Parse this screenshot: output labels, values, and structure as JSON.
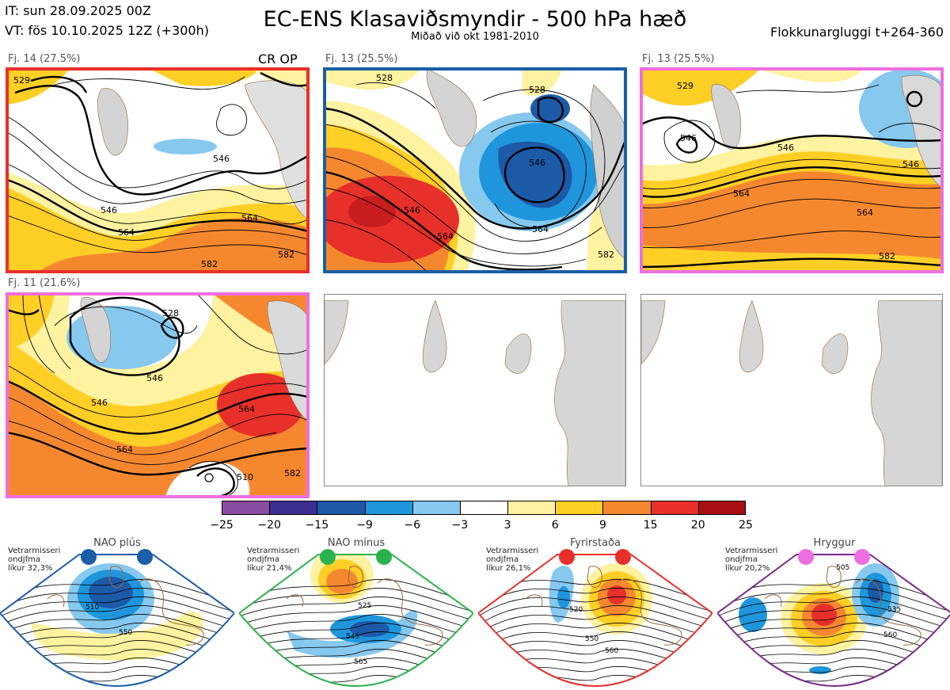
{
  "header": {
    "init_time": "IT: sun 28.09.2025 00Z",
    "valid_time": "VT: fös 10.10.2025 12Z  (+300h)",
    "title": "EC-ENS Klasaviðsmyndir - 500 hPa hæð",
    "subtitle": "Miðað við okt 1981-2010",
    "window": "Flokkunargluggi t+264-360"
  },
  "clusters": [
    {
      "label": "Fj. 14 (27.5%)",
      "tag": "CR OP",
      "frame_color": "#e8302a",
      "contours": [
        "529",
        "546",
        "546",
        "564",
        "564",
        "582",
        "582"
      ]
    },
    {
      "label": "Fj. 13 (25.5%)",
      "tag": "",
      "frame_color": "#1a5ea8",
      "contours": [
        "528",
        "528",
        "546",
        "546",
        "564",
        "564",
        "582"
      ]
    },
    {
      "label": "Fj. 13 (25.5%)",
      "tag": "",
      "frame_color": "#ee6ee0",
      "contours": [
        "529",
        "546",
        "546",
        "564",
        "564",
        "582",
        "546"
      ]
    },
    {
      "label": "Fj. 11 (21.6%)",
      "tag": "",
      "frame_color": "#ee6ee0",
      "contours": [
        "528",
        "546",
        "546",
        "564",
        "564",
        "582",
        "510"
      ]
    }
  ],
  "colorbar": {
    "ticks": [
      "−25",
      "−20",
      "−15",
      "−9",
      "−6",
      "−3",
      "3",
      "6",
      "9",
      "15",
      "20",
      "25"
    ],
    "colors": [
      "#8a4ca0",
      "#3d2e92",
      "#1c5aa8",
      "#1f96dc",
      "#86c8ee",
      "#ffffff",
      "#fff2a0",
      "#ffcf26",
      "#f5882f",
      "#e8302a",
      "#a81012"
    ]
  },
  "regimes": [
    {
      "name": "NAO plús",
      "dot_color": "#1a5ea8",
      "frame_color": "#1a5ea8",
      "note": [
        "Vetrarmisseri",
        "ondjfma",
        "líkur 32,3%"
      ],
      "contours": [
        "510",
        "550"
      ]
    },
    {
      "name": "NAO mínus",
      "dot_color": "#2bb24c",
      "frame_color": "#2bb24c",
      "note": [
        "Vetrarmisseri",
        "ondjfma",
        "líkur 21,4%"
      ],
      "contours": [
        "525",
        "545",
        "565"
      ]
    },
    {
      "name": "Fyrirstaða",
      "dot_color": "#e8302a",
      "frame_color": "#e8302a",
      "note": [
        "Vetrarmisseri",
        "ondjfma",
        "líkur 26,1%"
      ],
      "contours": [
        "520",
        "550",
        "560"
      ]
    },
    {
      "name": "Hryggur",
      "dot_color": "#ee6ee0",
      "frame_color": "#7a2a8a",
      "note": [
        "Vetrarmisseri",
        "ondjfma",
        "líkur 20,2%"
      ],
      "contours": [
        "505",
        "535",
        "560"
      ]
    }
  ],
  "icons": {
    "land": "land-mask",
    "coast": "coastline"
  }
}
